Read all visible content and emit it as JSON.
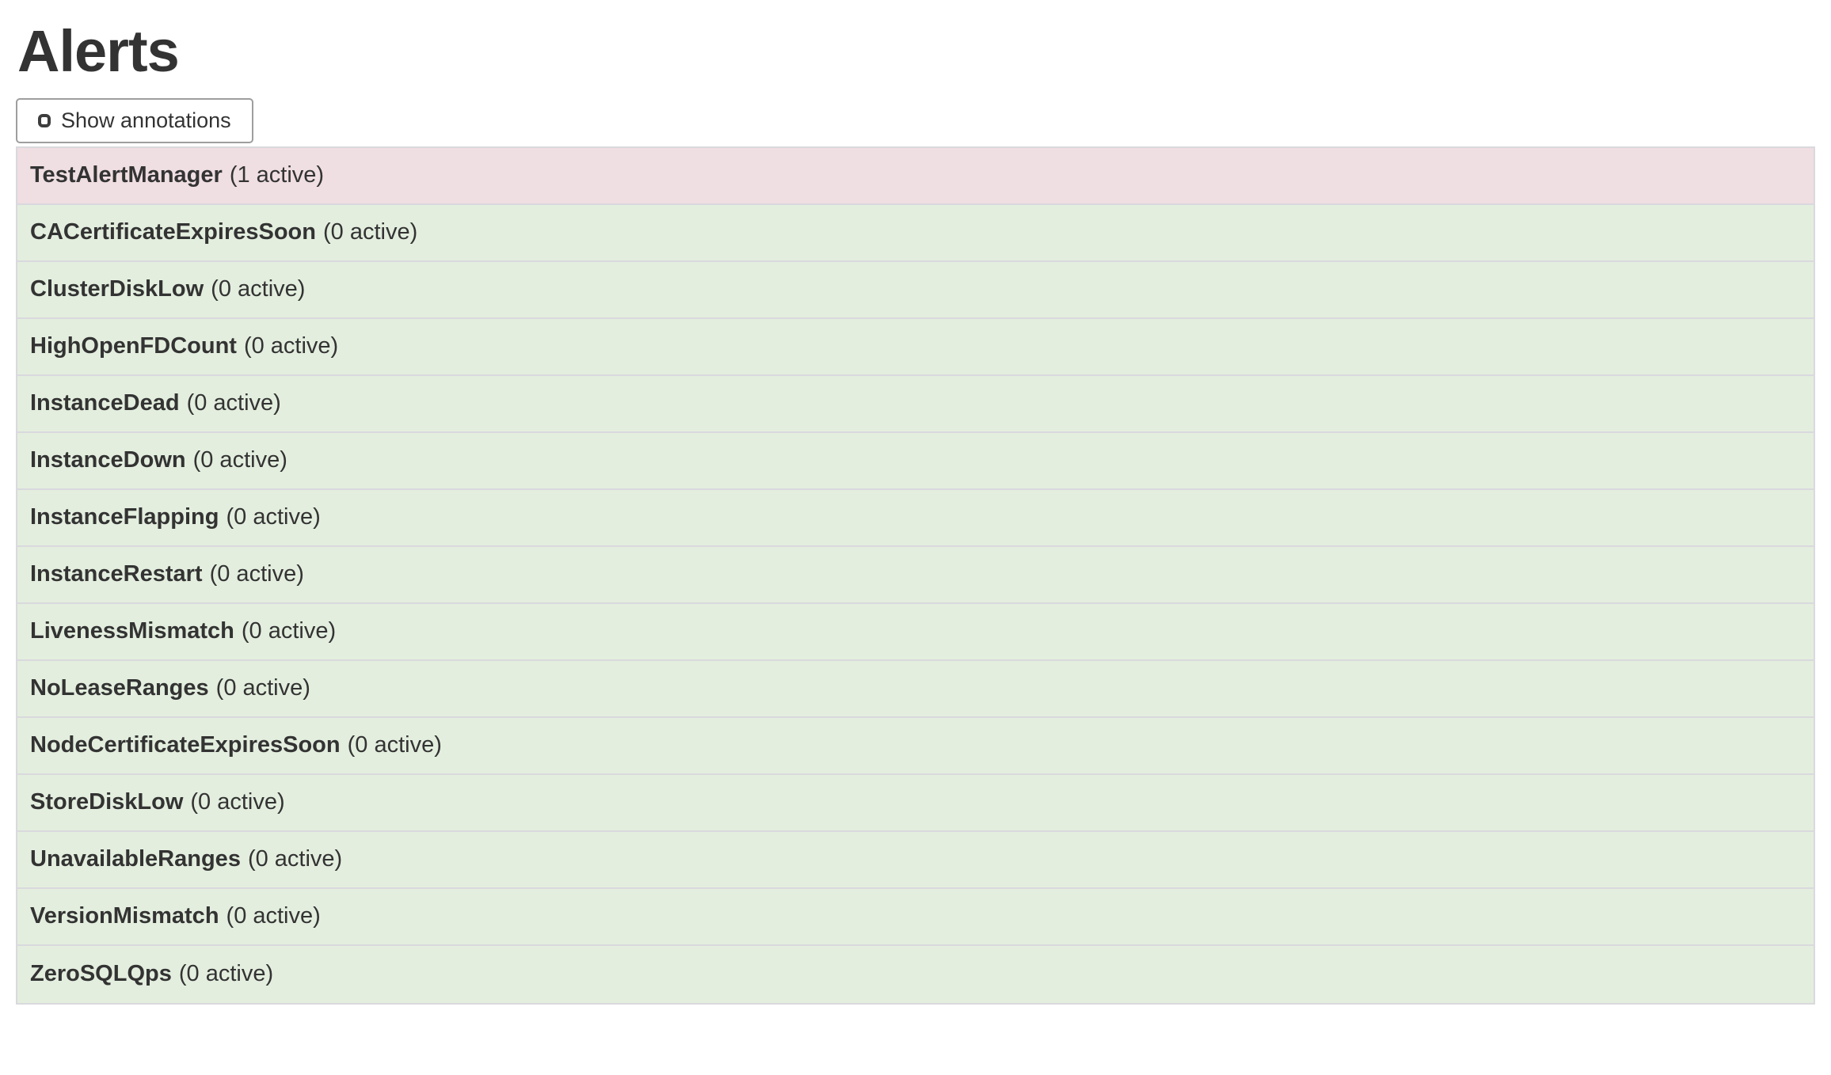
{
  "page": {
    "title": "Alerts"
  },
  "toolbar": {
    "show_annotations_label": "Show annotations",
    "show_annotations_checked": false
  },
  "colors": {
    "firing_row_bg": "#efdee2",
    "ok_row_bg": "#e3eede",
    "row_border": "#d9d9de",
    "text": "#333333",
    "button_border": "#9e9e9e"
  },
  "alerts": {
    "rows": [
      {
        "name": "TestAlertManager",
        "active": 1,
        "suffix": "(1 active)",
        "state": "firing"
      },
      {
        "name": "CACertificateExpiresSoon",
        "active": 0,
        "suffix": "(0 active)",
        "state": "ok"
      },
      {
        "name": "ClusterDiskLow",
        "active": 0,
        "suffix": "(0 active)",
        "state": "ok"
      },
      {
        "name": "HighOpenFDCount",
        "active": 0,
        "suffix": "(0 active)",
        "state": "ok"
      },
      {
        "name": "InstanceDead",
        "active": 0,
        "suffix": "(0 active)",
        "state": "ok"
      },
      {
        "name": "InstanceDown",
        "active": 0,
        "suffix": "(0 active)",
        "state": "ok"
      },
      {
        "name": "InstanceFlapping",
        "active": 0,
        "suffix": "(0 active)",
        "state": "ok"
      },
      {
        "name": "InstanceRestart",
        "active": 0,
        "suffix": "(0 active)",
        "state": "ok"
      },
      {
        "name": "LivenessMismatch",
        "active": 0,
        "suffix": "(0 active)",
        "state": "ok"
      },
      {
        "name": "NoLeaseRanges",
        "active": 0,
        "suffix": "(0 active)",
        "state": "ok"
      },
      {
        "name": "NodeCertificateExpiresSoon",
        "active": 0,
        "suffix": "(0 active)",
        "state": "ok"
      },
      {
        "name": "StoreDiskLow",
        "active": 0,
        "suffix": "(0 active)",
        "state": "ok"
      },
      {
        "name": "UnavailableRanges",
        "active": 0,
        "suffix": "(0 active)",
        "state": "ok"
      },
      {
        "name": "VersionMismatch",
        "active": 0,
        "suffix": "(0 active)",
        "state": "ok"
      },
      {
        "name": "ZeroSQLQps",
        "active": 0,
        "suffix": "(0 active)",
        "state": "ok"
      }
    ]
  }
}
